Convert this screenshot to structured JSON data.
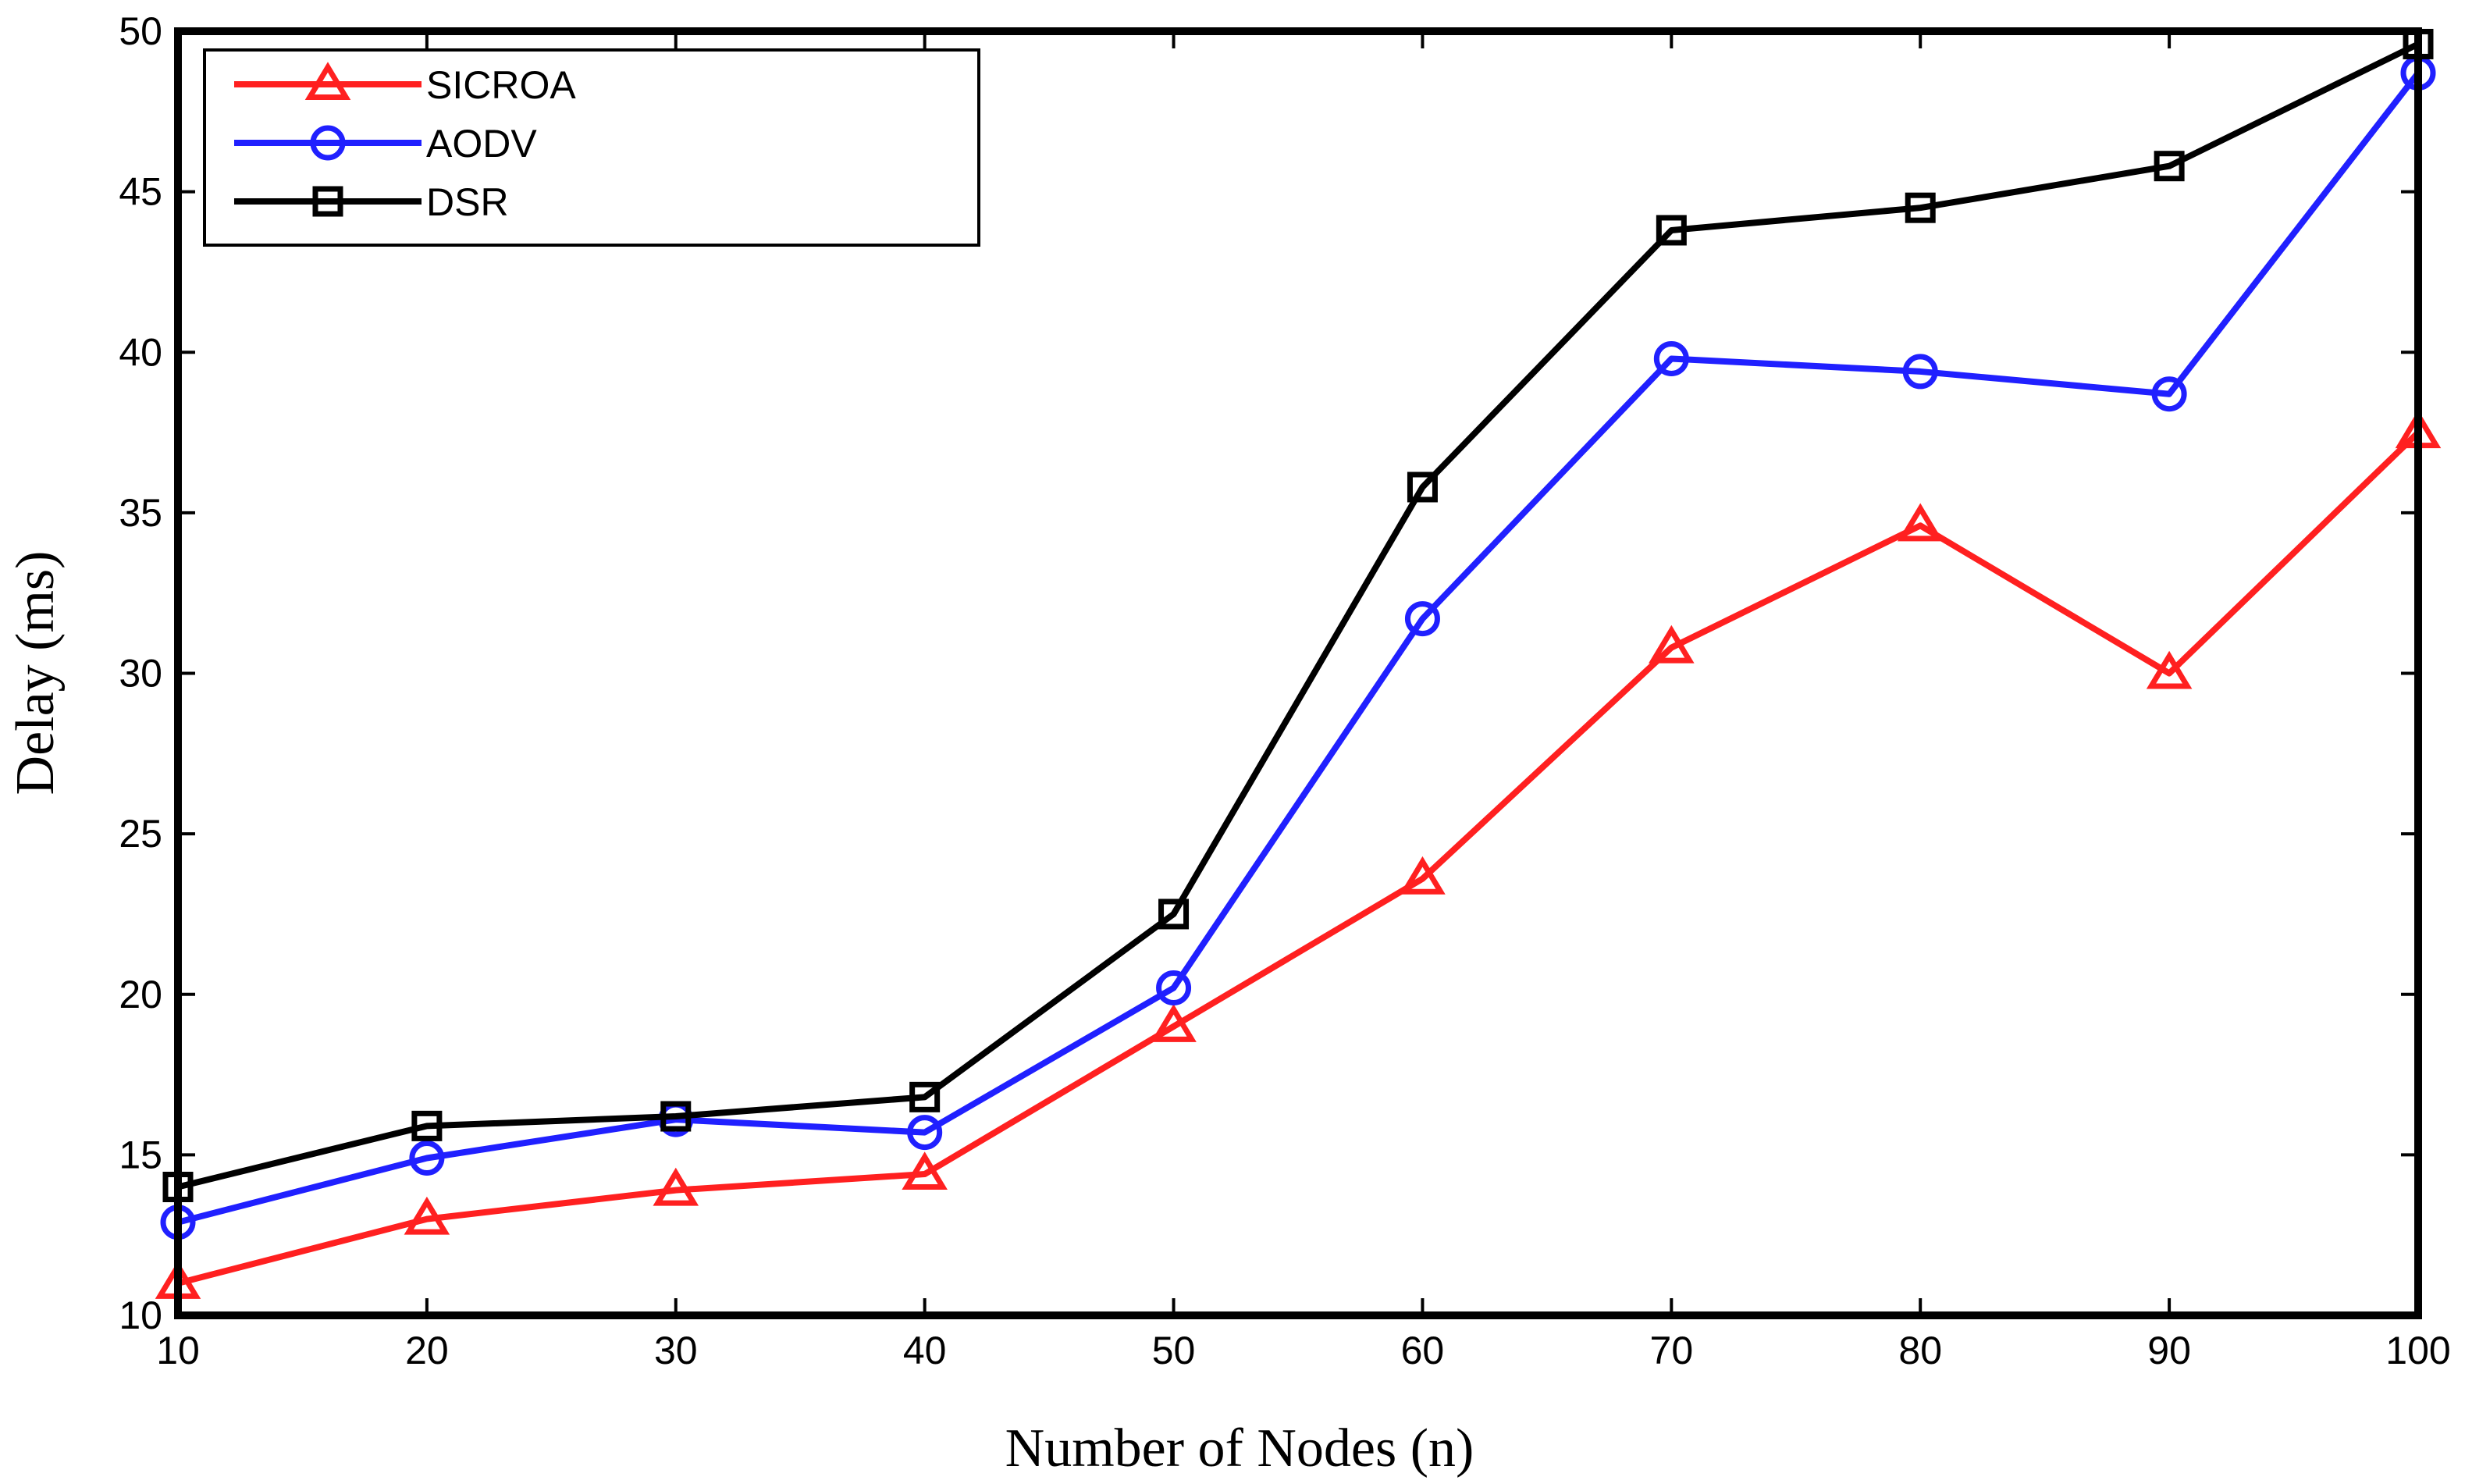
{
  "chart_data": {
    "type": "line",
    "title": "",
    "xlabel": "Number of Nodes (n)",
    "ylabel": "Delay (ms)",
    "x": [
      10,
      20,
      30,
      40,
      50,
      60,
      70,
      80,
      90,
      100
    ],
    "xlim": [
      10,
      100
    ],
    "ylim": [
      10,
      50
    ],
    "xticks": [
      "10",
      "20",
      "30",
      "40",
      "50",
      "60",
      "70",
      "80",
      "90",
      "100"
    ],
    "yticks": [
      "10",
      "15",
      "20",
      "25",
      "30",
      "35",
      "40",
      "45",
      "50"
    ],
    "grid": false,
    "legend_position": "top-left",
    "series": [
      {
        "name": "SICROA",
        "color": "#ff2020",
        "marker": "triangle",
        "values": [
          11.0,
          13.0,
          13.9,
          14.4,
          19.0,
          23.6,
          30.8,
          34.6,
          30.0,
          37.5
        ]
      },
      {
        "name": "AODV",
        "color": "#2020ff",
        "marker": "circle",
        "values": [
          12.9,
          14.9,
          16.1,
          15.7,
          20.2,
          31.7,
          39.8,
          39.4,
          38.7,
          48.7
        ]
      },
      {
        "name": "DSR",
        "color": "#000000",
        "marker": "square",
        "values": [
          14.0,
          15.9,
          16.2,
          16.8,
          22.5,
          35.8,
          43.8,
          44.5,
          45.8,
          49.6
        ]
      }
    ]
  }
}
